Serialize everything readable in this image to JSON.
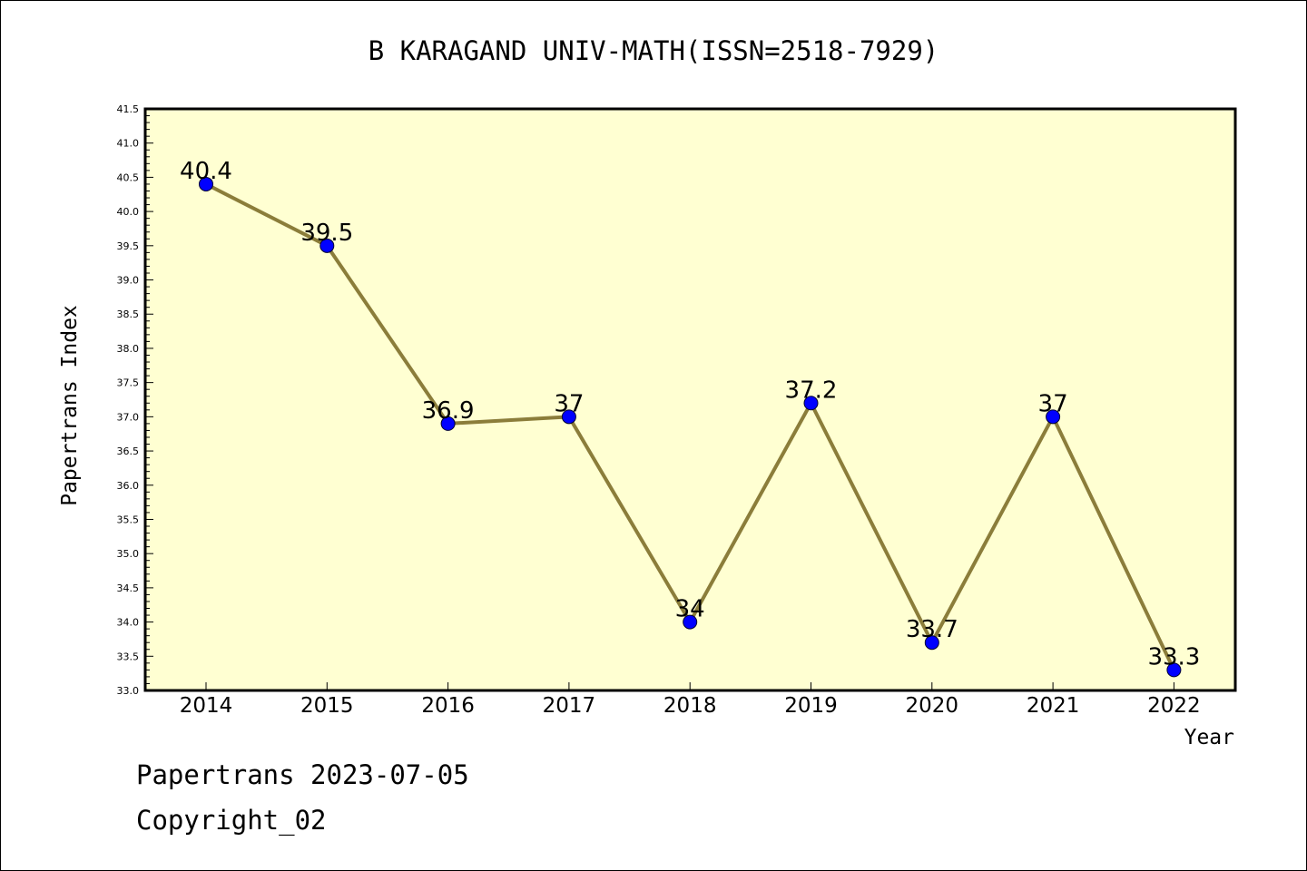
{
  "chart_data": {
    "type": "line",
    "title": "B KARAGAND UNIV-MATH(ISSN=2518-7929)",
    "xlabel": "Year",
    "ylabel": "Papertrans Index",
    "x": [
      "2014",
      "2015",
      "2016",
      "2017",
      "2018",
      "2019",
      "2020",
      "2021",
      "2022"
    ],
    "series": [
      {
        "values": [
          40.4,
          39.5,
          36.9,
          37,
          34,
          37.2,
          33.7,
          37,
          33.3
        ],
        "data_labels": [
          "40.4",
          "39.5",
          "36.9",
          "37",
          "34",
          "37.2",
          "33.7",
          "37",
          "33.3"
        ],
        "line_color": "#8b7d3a",
        "marker_color": "#0000ff"
      }
    ],
    "ylim": [
      33.0,
      41.5
    ],
    "y_major_ticks": [
      "33.0",
      "33.5",
      "34.0",
      "34.5",
      "35.0",
      "35.5",
      "36.0",
      "36.5",
      "37.0",
      "37.5",
      "38.0",
      "38.5",
      "39.0",
      "39.5",
      "40.0",
      "40.5",
      "41.0",
      "41.5"
    ],
    "y_minor_step": 0.1,
    "plot_background": "#ffffd2",
    "grid": false,
    "legend": "none"
  },
  "footer": {
    "line1": "Papertrans 2023-07-05",
    "line2": "Copyright_02"
  }
}
